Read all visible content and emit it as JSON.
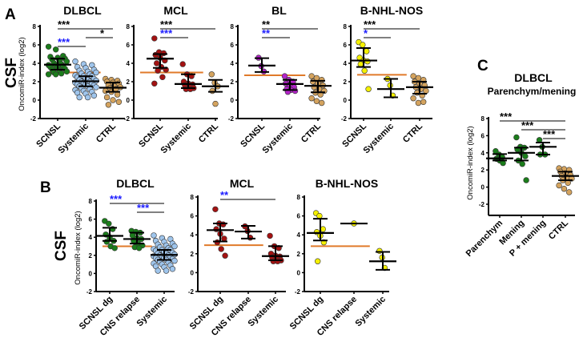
{
  "panel_labels": {
    "A": "A",
    "B": "B",
    "C": "C"
  },
  "row_labels": {
    "A": "CSF",
    "B": "CSF"
  },
  "colors": {
    "DLBCL_SCNSL": "#1b7d1b",
    "Systemic_DLBCL": "#9fc5ec",
    "CTRL": "#d4a35e",
    "MCL": "#a31212",
    "BL": "#b423c9",
    "BNHL": "#f4f000",
    "threshold": "#e07a2a",
    "sig_black": "#000000",
    "sig_blue": "#1a1aff"
  },
  "chart_data": [
    {
      "id": "A-DLBCL",
      "type": "scatter",
      "title": "DLBCL",
      "subtitle": "",
      "ylabel": "OncomiR-index (log2)",
      "ylim": [
        -2,
        8
      ],
      "yticks": [
        -2,
        0,
        2,
        4,
        6,
        8
      ],
      "threshold": 3.0,
      "groups": [
        {
          "name": "SCNSL",
          "color": "#1b7d1b",
          "median": 3.85,
          "q1": 3.3,
          "q3": 4.5,
          "values": [
            5.8,
            5.5,
            4.8,
            4.7,
            4.6,
            4.5,
            4.4,
            4.3,
            4.2,
            4.0,
            3.9,
            3.8,
            3.8,
            3.7,
            3.6,
            3.5,
            3.4,
            3.3,
            3.2,
            3.1,
            3.0,
            2.9,
            2.8,
            2.8
          ]
        },
        {
          "name": "Systemic",
          "color": "#9fc5ec",
          "median": 2.05,
          "q1": 1.5,
          "q3": 2.6,
          "values": [
            4.2,
            3.9,
            3.8,
            3.6,
            3.5,
            3.3,
            3.2,
            3.1,
            3.0,
            2.9,
            2.8,
            2.7,
            2.6,
            2.6,
            2.5,
            2.4,
            2.3,
            2.2,
            2.2,
            2.1,
            2.0,
            2.0,
            1.9,
            1.9,
            1.8,
            1.7,
            1.7,
            1.6,
            1.5,
            1.5,
            1.4,
            1.3,
            1.2,
            1.1,
            1.0,
            0.9,
            0.8,
            0.7,
            0.5,
            0.3,
            0.3
          ]
        },
        {
          "name": "CTRL",
          "color": "#d4a35e",
          "median": 1.35,
          "q1": 0.9,
          "q3": 1.9,
          "values": [
            2.3,
            2.2,
            2.1,
            2.0,
            1.9,
            1.8,
            1.6,
            1.5,
            1.4,
            1.3,
            1.2,
            1.0,
            0.9,
            0.6,
            0.3,
            0.0,
            -0.2,
            -0.5
          ]
        }
      ],
      "sig": [
        {
          "from": 0,
          "to": 2,
          "label": "***",
          "color": "black"
        },
        {
          "from": 1,
          "to": 2,
          "label": "*",
          "color": "black"
        },
        {
          "from": 0,
          "to": 1,
          "label": "***",
          "color": "blue"
        }
      ]
    },
    {
      "id": "A-MCL",
      "type": "scatter",
      "title": "MCL",
      "subtitle": "",
      "ylabel": "",
      "ylim": [
        -2,
        8
      ],
      "yticks": [
        -2,
        0,
        2,
        4,
        6,
        8
      ],
      "threshold": 3.0,
      "groups": [
        {
          "name": "SCNSL",
          "color": "#a31212",
          "median": 4.5,
          "q1": 3.5,
          "q3": 5.0,
          "values": [
            6.7,
            5.2,
            5.1,
            4.9,
            4.6,
            4.3,
            4.0,
            3.6,
            3.3,
            3.2,
            2.5,
            1.8
          ]
        },
        {
          "name": "Systemic",
          "color": "#a31212",
          "median": 1.75,
          "q1": 1.3,
          "q3": 2.8,
          "values": [
            3.9,
            2.8,
            2.6,
            2.0,
            1.8,
            1.7,
            1.6,
            1.5,
            1.3,
            1.2,
            1.2
          ]
        },
        {
          "name": "CTRL",
          "color": "#d4a35e",
          "median": 1.5,
          "q1": 0.9,
          "q3": 2.2,
          "values": [
            2.8,
            1.9,
            1.5,
            1.0,
            -0.4
          ]
        }
      ],
      "sig": [
        {
          "from": 0,
          "to": 2,
          "label": "***",
          "color": "black"
        },
        {
          "from": 0,
          "to": 1,
          "label": "***",
          "color": "blue"
        }
      ]
    },
    {
      "id": "A-BL",
      "type": "scatter",
      "title": "BL",
      "subtitle": "",
      "ylabel": "",
      "ylim": [
        -2,
        8
      ],
      "yticks": [
        -2,
        0,
        2,
        4,
        6,
        8
      ],
      "threshold": 2.7,
      "groups": [
        {
          "name": "SCNSL",
          "color": "#b423c9",
          "median": 3.75,
          "q1": 3.05,
          "q3": 4.55,
          "values": [
            4.6,
            3.7,
            3.1
          ]
        },
        {
          "name": "Systemic",
          "color": "#b423c9",
          "median": 1.75,
          "q1": 1.1,
          "q3": 2.2,
          "values": [
            2.6,
            2.2,
            2.0,
            1.8,
            1.6,
            1.4,
            1.2,
            1.1,
            1.0,
            0.9
          ]
        },
        {
          "name": "CTRL",
          "color": "#d4a35e",
          "median": 1.55,
          "q1": 0.85,
          "q3": 2.1,
          "values": [
            2.6,
            2.4,
            2.2,
            2.0,
            1.8,
            1.6,
            1.4,
            1.2,
            1.0,
            0.8,
            0.6,
            0.2,
            -0.1,
            -0.3
          ]
        }
      ],
      "sig": [
        {
          "from": 0,
          "to": 2,
          "label": "**",
          "color": "black"
        },
        {
          "from": 0,
          "to": 1,
          "label": "**",
          "color": "blue"
        }
      ]
    },
    {
      "id": "A-BNHL",
      "type": "scatter",
      "title": "B-NHL-NOS",
      "subtitle": "",
      "ylabel": "",
      "ylim": [
        -2,
        8
      ],
      "yticks": [
        -2,
        0,
        2,
        4,
        6,
        8
      ],
      "threshold": 2.75,
      "groups": [
        {
          "name": "SCNSL",
          "color": "#f4f000",
          "median": 4.3,
          "q1": 3.6,
          "q3": 5.65,
          "values": [
            6.3,
            6.0,
            5.3,
            4.6,
            4.3,
            4.2,
            3.9,
            3.2,
            1.2
          ]
        },
        {
          "name": "Systemic",
          "color": "#f4f000",
          "median": 1.2,
          "q1": 0.3,
          "q3": 2.3,
          "values": [
            2.3,
            1.6,
            0.5
          ]
        },
        {
          "name": "CTRL",
          "color": "#d4a35e",
          "median": 1.4,
          "q1": 0.7,
          "q3": 2.0,
          "values": [
            2.6,
            2.4,
            2.2,
            2.0,
            1.8,
            1.6,
            1.4,
            1.2,
            1.0,
            0.8,
            0.5,
            0.2,
            -0.3,
            -0.2
          ]
        }
      ],
      "sig": [
        {
          "from": 0,
          "to": 2,
          "label": "***",
          "color": "black"
        },
        {
          "from": 0,
          "to": 1,
          "label": "*",
          "color": "blue"
        }
      ]
    },
    {
      "id": "B-DLBCL",
      "type": "scatter",
      "title": "DLBCL",
      "subtitle": "",
      "ylabel": "OncomiR-index (log2)",
      "ylim": [
        -2,
        8
      ],
      "yticks": [
        -2,
        0,
        2,
        4,
        6,
        8
      ],
      "threshold": 3.0,
      "groups": [
        {
          "name": "SCNSL dg",
          "color": "#1b7d1b",
          "median": 4.15,
          "q1": 3.6,
          "q3": 5.05,
          "values": [
            5.8,
            5.5,
            4.9,
            4.3,
            4.0,
            3.6,
            3.5,
            3.0,
            2.8
          ]
        },
        {
          "name": "CNS relapse",
          "color": "#1b7d1b",
          "median": 3.8,
          "q1": 3.3,
          "q3": 4.5,
          "values": [
            4.7,
            4.6,
            4.5,
            4.2,
            3.9,
            3.8,
            3.6,
            3.3,
            3.1,
            2.9,
            2.8
          ]
        },
        {
          "name": "Systemic",
          "color": "#9fc5ec",
          "median": 2.05,
          "q1": 1.5,
          "q3": 2.6,
          "values": [
            4.2,
            3.9,
            3.8,
            3.6,
            3.5,
            3.3,
            3.2,
            3.1,
            3.0,
            2.9,
            2.8,
            2.7,
            2.6,
            2.6,
            2.5,
            2.4,
            2.3,
            2.2,
            2.2,
            2.1,
            2.0,
            2.0,
            1.9,
            1.9,
            1.8,
            1.7,
            1.7,
            1.6,
            1.5,
            1.5,
            1.4,
            1.3,
            1.2,
            1.1,
            1.0,
            0.9,
            0.8,
            0.7,
            0.5,
            0.3,
            0.3
          ]
        }
      ],
      "sig": [
        {
          "from": 0,
          "to": 2,
          "label": "***",
          "color": "blue"
        },
        {
          "from": 1,
          "to": 2,
          "label": "***",
          "color": "blue"
        }
      ]
    },
    {
      "id": "B-MCL",
      "type": "scatter",
      "title": "MCL",
      "subtitle": "",
      "ylabel": "",
      "ylim": [
        -2,
        8
      ],
      "yticks": [
        -2,
        0,
        2,
        4,
        6,
        8
      ],
      "threshold": 2.9,
      "groups": [
        {
          "name": "SCNSL dg",
          "color": "#a31212",
          "median": 4.5,
          "q1": 3.3,
          "q3": 5.2,
          "values": [
            6.7,
            5.2,
            5.1,
            4.6,
            4.1,
            3.6,
            3.2,
            2.5,
            1.8
          ]
        },
        {
          "name": "CNS relapse",
          "color": "#a31212",
          "median": 4.35,
          "q1": 3.6,
          "q3": 4.95,
          "values": [
            4.9,
            4.4,
            3.7
          ]
        },
        {
          "name": "Systemic",
          "color": "#a31212",
          "median": 1.75,
          "q1": 1.3,
          "q3": 2.8,
          "values": [
            3.9,
            2.8,
            2.6,
            2.0,
            1.8,
            1.7,
            1.6,
            1.5,
            1.3,
            1.2,
            1.2
          ]
        }
      ],
      "sig": [
        {
          "from": 0,
          "to": 2,
          "label": "**",
          "color": "blue"
        }
      ]
    },
    {
      "id": "B-BNHL",
      "type": "scatter",
      "title": "B-NHL-NOS",
      "subtitle": "",
      "ylabel": "",
      "ylim": [
        -2,
        8
      ],
      "yticks": [
        -2,
        0,
        2,
        4,
        6,
        8
      ],
      "threshold": 2.8,
      "groups": [
        {
          "name": "SCNSL dg",
          "color": "#f4f000",
          "median": 4.2,
          "q1": 3.4,
          "q3": 5.7,
          "values": [
            6.3,
            6.0,
            4.6,
            4.3,
            3.9,
            3.2,
            1.2
          ]
        },
        {
          "name": "CNS relapse",
          "color": "#f4f000",
          "median": 5.2,
          "q1": 5.2,
          "q3": 5.2,
          "values": [
            5.2
          ]
        },
        {
          "name": "Systemic",
          "color": "#f4f000",
          "median": 1.2,
          "q1": 0.3,
          "q3": 2.2,
          "values": [
            2.3,
            1.6,
            0.5
          ]
        }
      ],
      "sig": []
    },
    {
      "id": "C-DLBCL",
      "type": "scatter",
      "title": "DLBCL",
      "subtitle": "Parenchym/mening",
      "ylabel": "OncomiR-index (log2)",
      "ylim": [
        -3.3,
        8
      ],
      "yticks": [
        -2,
        0,
        2,
        4,
        6,
        8
      ],
      "threshold": null,
      "groups": [
        {
          "name": "Parenchym",
          "color": "#1b7d1b",
          "median": 3.35,
          "q1": 3.1,
          "q3": 3.85,
          "values": [
            4.2,
            3.8,
            3.5,
            3.3,
            3.1,
            2.8
          ]
        },
        {
          "name": "Mening",
          "color": "#1b7d1b",
          "median": 4.0,
          "q1": 3.1,
          "q3": 4.6,
          "values": [
            5.8,
            4.7,
            4.6,
            4.4,
            4.0,
            3.6,
            3.1,
            2.7,
            0.8
          ]
        },
        {
          "name": "P + mening",
          "color": "#1b7d1b",
          "median": 4.7,
          "q1": 3.8,
          "q3": 5.2,
          "values": [
            5.5,
            4.7,
            3.8,
            3.8
          ]
        },
        {
          "name": "CTRL",
          "color": "#d4a35e",
          "median": 1.3,
          "q1": 0.8,
          "q3": 1.8,
          "values": [
            2.2,
            2.1,
            2.0,
            1.8,
            1.6,
            1.4,
            1.3,
            1.1,
            1.0,
            0.8,
            0.5,
            0.2,
            -0.2,
            -0.6
          ]
        }
      ],
      "sig": [
        {
          "from": 0,
          "to": 3,
          "label": "***",
          "color": "black"
        },
        {
          "from": 1,
          "to": 3,
          "label": "***",
          "color": "black"
        },
        {
          "from": 2,
          "to": 3,
          "label": "***",
          "color": "black"
        }
      ]
    }
  ]
}
